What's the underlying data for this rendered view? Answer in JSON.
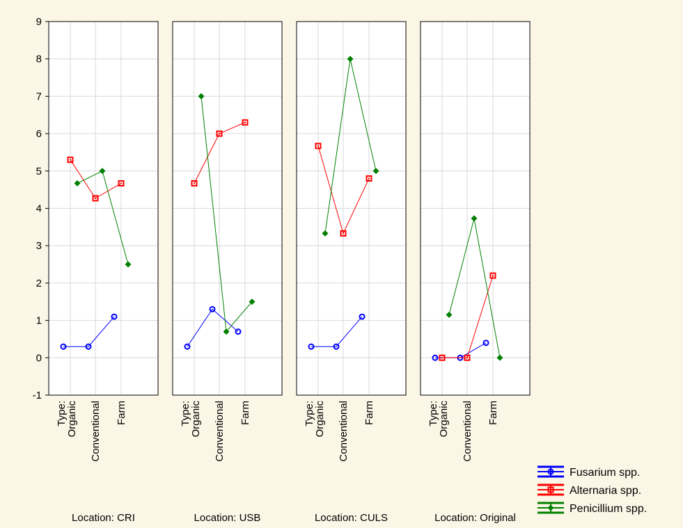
{
  "chart_data": {
    "type": "line",
    "ylim": [
      -1,
      9
    ],
    "yticks": [
      -1,
      0,
      1,
      2,
      3,
      4,
      5,
      6,
      7,
      8,
      9
    ],
    "grid": true,
    "legend_placement": "bottom-right",
    "category_prefix": "Type:",
    "categories": [
      "Organic",
      "Conventional",
      "Farm"
    ],
    "panels": [
      {
        "location_label": "Location: CRI",
        "series": [
          {
            "name": "Fusarium spp.",
            "values": [
              0.3,
              0.3,
              1.1
            ]
          },
          {
            "name": "Alternaria spp.",
            "values": [
              5.3,
              4.27,
              4.67
            ]
          },
          {
            "name": "Penicillium spp.",
            "values": [
              4.67,
              5.0,
              2.5
            ]
          }
        ]
      },
      {
        "location_label": "Location: USB",
        "series": [
          {
            "name": "Fusarium spp.",
            "values": [
              0.3,
              1.3,
              0.7
            ]
          },
          {
            "name": "Alternaria spp.",
            "values": [
              4.67,
              6.0,
              6.3
            ]
          },
          {
            "name": "Penicillium spp.",
            "values": [
              7.0,
              0.7,
              1.5
            ]
          }
        ]
      },
      {
        "location_label": "Location: CULS",
        "series": [
          {
            "name": "Fusarium spp.",
            "values": [
              0.3,
              0.3,
              1.1
            ]
          },
          {
            "name": "Alternaria spp.",
            "values": [
              5.67,
              3.33,
              4.8
            ]
          },
          {
            "name": "Penicillium spp.",
            "values": [
              3.33,
              8.0,
              5.0
            ]
          }
        ]
      },
      {
        "location_label": "Location: Original",
        "series": [
          {
            "name": "Fusarium spp.",
            "values": [
              0.0,
              0.0,
              0.4
            ]
          },
          {
            "name": "Alternaria spp.",
            "values": [
              0.0,
              0.0,
              2.2
            ]
          },
          {
            "name": "Penicillium spp.",
            "values": [
              1.15,
              3.73,
              0.0
            ]
          }
        ]
      }
    ],
    "legend": [
      {
        "name": "Fusarium spp.",
        "color": "#0000ff",
        "marker": "circle"
      },
      {
        "name": "Alternaria spp.",
        "color": "#ff0000",
        "marker": "square"
      },
      {
        "name": "Penicillium spp.",
        "color": "#008000",
        "marker": "diamond"
      }
    ]
  }
}
